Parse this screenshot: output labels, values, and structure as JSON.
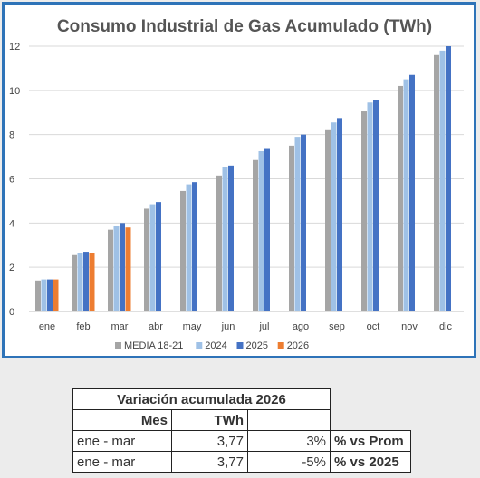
{
  "chart_data": {
    "type": "bar",
    "title": "Consumo Industrial de Gas Acumulado (TWh)",
    "categories": [
      "ene",
      "feb",
      "mar",
      "abr",
      "may",
      "jun",
      "jul",
      "ago",
      "sep",
      "oct",
      "nov",
      "dic"
    ],
    "ylim": [
      0,
      12
    ],
    "yticks": [
      0,
      2,
      4,
      6,
      8,
      10,
      12
    ],
    "grid": true,
    "legend_position": "bottom",
    "series": [
      {
        "name": "MEDIA 18-21",
        "color": "#a5a5a5",
        "values": [
          1.4,
          2.55,
          3.7,
          4.65,
          5.45,
          6.15,
          6.85,
          7.5,
          8.2,
          9.05,
          10.2,
          11.6
        ]
      },
      {
        "name": "2024",
        "color": "#9fc1e6",
        "values": [
          1.45,
          2.65,
          3.85,
          4.85,
          5.75,
          6.55,
          7.25,
          7.9,
          8.55,
          9.45,
          10.5,
          11.8
        ]
      },
      {
        "name": "2025",
        "color": "#4472c4",
        "values": [
          1.45,
          2.7,
          4.0,
          4.95,
          5.85,
          6.6,
          7.35,
          8.0,
          8.75,
          9.55,
          10.7,
          12.0
        ]
      },
      {
        "name": "2026",
        "color": "#ed7d31",
        "values": [
          1.45,
          2.65,
          3.8,
          null,
          null,
          null,
          null,
          null,
          null,
          null,
          null,
          null
        ]
      }
    ]
  },
  "table": {
    "title": "Variación acumulada 2026",
    "header_mes": "Mes",
    "header_twh": "TWh",
    "rows": [
      {
        "mes": "ene - mar",
        "twh": "3,77",
        "pct": "3%",
        "label": "% vs Prom"
      },
      {
        "mes": "ene - mar",
        "twh": "3,77",
        "pct": "-5%",
        "label": "% vs 2025"
      }
    ]
  }
}
